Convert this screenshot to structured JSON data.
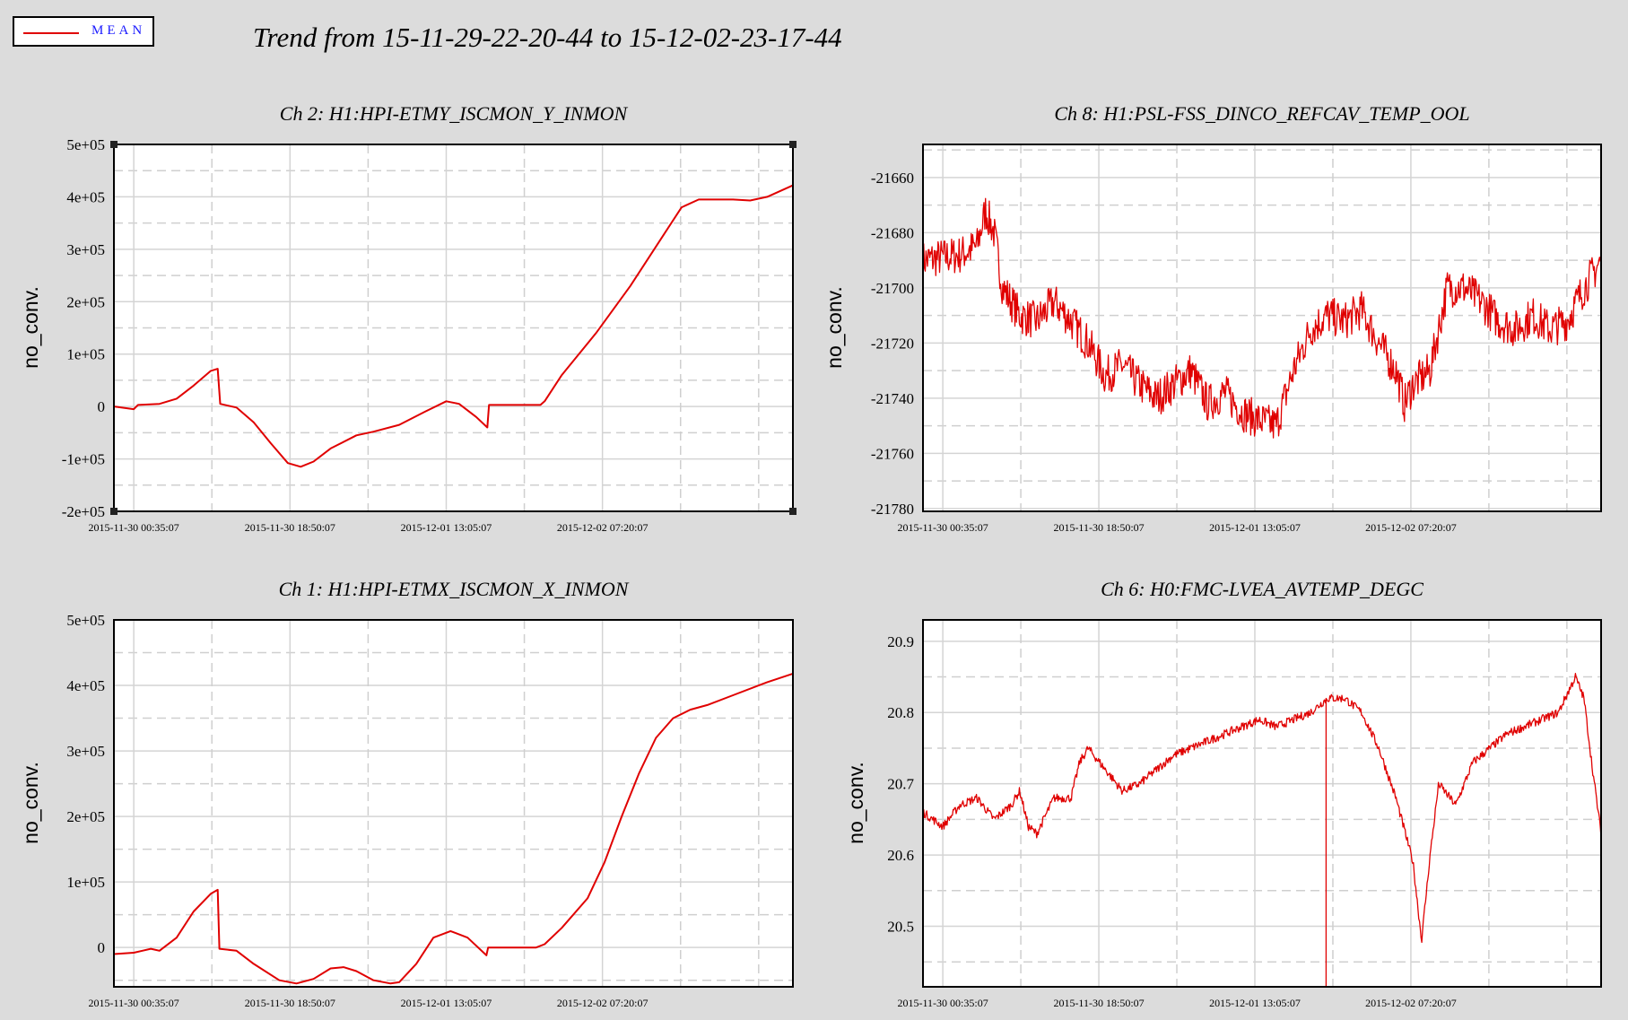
{
  "legend": {
    "label": "MEAN",
    "color": "#e00000"
  },
  "title": "Trend from 15-11-29-22-20-44 to 15-12-02-23-17-44",
  "chart_data": [
    {
      "type": "line",
      "title": "Ch 2: H1:HPI-ETMY_ISCMON_Y_INMON",
      "ylabel": "no_conv.",
      "xlabel": "",
      "series": [
        {
          "name": "MEAN",
          "color": "#e00000"
        }
      ],
      "x_ticks": [
        "2015-11-30 00:35:07",
        "2015-11-30 18:50:07",
        "2015-12-01 13:05:07",
        "2015-12-02 07:20:07"
      ],
      "y_ticks": [
        "-2e+05",
        "-1e+05",
        "0",
        "1e+05",
        "2e+05",
        "3e+05",
        "4e+05",
        "5e+05"
      ],
      "y_tick_values": [
        -200000,
        -100000,
        0,
        100000,
        200000,
        300000,
        400000,
        500000
      ],
      "xlim_hours": [
        -2.32,
        77.0
      ],
      "ylim": [
        -200000,
        500000
      ],
      "grid": true,
      "points": [
        [
          -2.32,
          0
        ],
        [
          0,
          -5000
        ],
        [
          0.5,
          3000
        ],
        [
          3,
          5000
        ],
        [
          5,
          15000
        ],
        [
          7,
          40000
        ],
        [
          9,
          68000
        ],
        [
          9.8,
          72000
        ],
        [
          10.1,
          5000
        ],
        [
          12,
          -2000
        ],
        [
          14,
          -30000
        ],
        [
          16,
          -70000
        ],
        [
          18,
          -108000
        ],
        [
          19.5,
          -115000
        ],
        [
          21,
          -105000
        ],
        [
          23,
          -80000
        ],
        [
          26,
          -55000
        ],
        [
          28,
          -48000
        ],
        [
          31,
          -35000
        ],
        [
          34,
          -10000
        ],
        [
          36.5,
          10000
        ],
        [
          38,
          5000
        ],
        [
          40,
          -20000
        ],
        [
          41.3,
          -40000
        ],
        [
          41.5,
          3000
        ],
        [
          45,
          3000
        ],
        [
          47.5,
          3000
        ],
        [
          48,
          10000
        ],
        [
          50,
          60000
        ],
        [
          54,
          140000
        ],
        [
          58,
          230000
        ],
        [
          62,
          330000
        ],
        [
          64,
          380000
        ],
        [
          66,
          395000
        ],
        [
          70,
          395000
        ],
        [
          72,
          393000
        ],
        [
          74,
          400000
        ],
        [
          77,
          422000
        ]
      ]
    },
    {
      "type": "line",
      "title": "Ch 8: H1:PSL-FSS_DINCO_REFCAV_TEMP_OOL",
      "ylabel": "no_conv.",
      "xlabel": "",
      "series": [
        {
          "name": "MEAN",
          "color": "#e00000"
        }
      ],
      "x_ticks": [
        "2015-11-30 00:35:07",
        "2015-11-30 18:50:07",
        "2015-12-01 13:05:07",
        "2015-12-02 07:20:07"
      ],
      "y_ticks": [
        "-21780",
        "-21760",
        "-21740",
        "-21720",
        "-21700",
        "-21680",
        "-21660"
      ],
      "y_tick_values": [
        -21780,
        -21760,
        -21740,
        -21720,
        -21700,
        -21680,
        -21660
      ],
      "xlim_hours": [
        -2.32,
        77.0
      ],
      "ylim": [
        -21781,
        -21648
      ],
      "grid": true,
      "noise": 7,
      "points": [
        [
          -2.32,
          -21690
        ],
        [
          2,
          -21688
        ],
        [
          4,
          -21685
        ],
        [
          5,
          -21672
        ],
        [
          6,
          -21680
        ],
        [
          7,
          -21700
        ],
        [
          9,
          -21710
        ],
        [
          11,
          -21712
        ],
        [
          13,
          -21705
        ],
        [
          15,
          -21712
        ],
        [
          17,
          -21720
        ],
        [
          19,
          -21732
        ],
        [
          21,
          -21728
        ],
        [
          23,
          -21735
        ],
        [
          25,
          -21740
        ],
        [
          27,
          -21735
        ],
        [
          29,
          -21730
        ],
        [
          31,
          -21742
        ],
        [
          33,
          -21738
        ],
        [
          35,
          -21745
        ],
        [
          37,
          -21748
        ],
        [
          39,
          -21750
        ],
        [
          41,
          -21730
        ],
        [
          43,
          -21715
        ],
        [
          45,
          -21710
        ],
        [
          47,
          -21712
        ],
        [
          49,
          -21708
        ],
        [
          51,
          -21720
        ],
        [
          53,
          -21730
        ],
        [
          54,
          -21742
        ],
        [
          55,
          -21735
        ],
        [
          57,
          -21730
        ],
        [
          59,
          -21700
        ],
        [
          61,
          -21700
        ],
        [
          63,
          -21705
        ],
        [
          65,
          -21712
        ],
        [
          67,
          -21715
        ],
        [
          69,
          -21710
        ],
        [
          71,
          -21715
        ],
        [
          73,
          -21712
        ],
        [
          75,
          -21700
        ],
        [
          77,
          -21690
        ]
      ]
    },
    {
      "type": "line",
      "title": "Ch 1: H1:HPI-ETMX_ISCMON_X_INMON",
      "ylabel": "no_conv.",
      "xlabel": "",
      "series": [
        {
          "name": "MEAN",
          "color": "#e00000"
        }
      ],
      "x_ticks": [
        "2015-11-30 00:35:07",
        "2015-11-30 18:50:07",
        "2015-12-01 13:05:07",
        "2015-12-02 07:20:07"
      ],
      "y_ticks": [
        "0",
        "1e+05",
        "2e+05",
        "3e+05",
        "4e+05",
        "5e+05"
      ],
      "y_tick_values": [
        0,
        100000,
        200000,
        300000,
        400000,
        500000
      ],
      "xlim_hours": [
        -2.32,
        77.0
      ],
      "ylim": [
        -60000,
        500000
      ],
      "grid": true,
      "points": [
        [
          -2.32,
          -10000
        ],
        [
          0,
          -8000
        ],
        [
          1,
          -5000
        ],
        [
          2,
          -2000
        ],
        [
          3,
          -5000
        ],
        [
          5,
          15000
        ],
        [
          7,
          55000
        ],
        [
          9,
          82000
        ],
        [
          9.8,
          88000
        ],
        [
          10,
          -2000
        ],
        [
          12,
          -5000
        ],
        [
          14,
          -25000
        ],
        [
          17,
          -50000
        ],
        [
          19,
          -55000
        ],
        [
          21,
          -48000
        ],
        [
          23,
          -32000
        ],
        [
          24.5,
          -30000
        ],
        [
          26,
          -36000
        ],
        [
          28,
          -50000
        ],
        [
          30,
          -55000
        ],
        [
          31,
          -53000
        ],
        [
          33,
          -25000
        ],
        [
          35,
          15000
        ],
        [
          37,
          25000
        ],
        [
          39,
          15000
        ],
        [
          41.2,
          -12000
        ],
        [
          41.4,
          0
        ],
        [
          45,
          0
        ],
        [
          47,
          0
        ],
        [
          48,
          5000
        ],
        [
          50,
          30000
        ],
        [
          53,
          75000
        ],
        [
          55,
          130000
        ],
        [
          57,
          200000
        ],
        [
          59,
          265000
        ],
        [
          61,
          320000
        ],
        [
          63,
          350000
        ],
        [
          65,
          363000
        ],
        [
          67,
          370000
        ],
        [
          70,
          385000
        ],
        [
          74,
          405000
        ],
        [
          77,
          418000
        ]
      ]
    },
    {
      "type": "line",
      "title": "Ch 6: H0:FMC-LVEA_AVTEMP_DEGC",
      "ylabel": "no_conv.",
      "xlabel": "",
      "series": [
        {
          "name": "MEAN",
          "color": "#e00000"
        }
      ],
      "x_ticks": [
        "2015-11-30 00:35:07",
        "2015-11-30 18:50:07",
        "2015-12-01 13:05:07",
        "2015-12-02 07:20:07"
      ],
      "y_ticks": [
        "20.5",
        "20.6",
        "20.7",
        "20.8",
        "20.9"
      ],
      "y_tick_values": [
        20.5,
        20.6,
        20.7,
        20.8,
        20.9
      ],
      "xlim_hours": [
        -2.32,
        77.0
      ],
      "ylim": [
        20.415,
        20.93
      ],
      "grid": true,
      "noise": 0.006,
      "spike": {
        "x": 44.8,
        "y": 20.415
      },
      "points": [
        [
          -2.32,
          20.66
        ],
        [
          0,
          20.64
        ],
        [
          2,
          20.67
        ],
        [
          4,
          20.68
        ],
        [
          6,
          20.65
        ],
        [
          8,
          20.67
        ],
        [
          9,
          20.69
        ],
        [
          10,
          20.64
        ],
        [
          11,
          20.63
        ],
        [
          13,
          20.68
        ],
        [
          15,
          20.68
        ],
        [
          16,
          20.73
        ],
        [
          17,
          20.75
        ],
        [
          19,
          20.72
        ],
        [
          21,
          20.69
        ],
        [
          23,
          20.7
        ],
        [
          25,
          20.72
        ],
        [
          27,
          20.74
        ],
        [
          29,
          20.75
        ],
        [
          31,
          20.76
        ],
        [
          33,
          20.77
        ],
        [
          35,
          20.78
        ],
        [
          37,
          20.79
        ],
        [
          39,
          20.78
        ],
        [
          41,
          20.79
        ],
        [
          43,
          20.8
        ],
        [
          45,
          20.82
        ],
        [
          47,
          20.82
        ],
        [
          49,
          20.8
        ],
        [
          51,
          20.75
        ],
        [
          53,
          20.68
        ],
        [
          55,
          20.59
        ],
        [
          56,
          20.48
        ],
        [
          57,
          20.6
        ],
        [
          58,
          20.7
        ],
        [
          60,
          20.67
        ],
        [
          62,
          20.73
        ],
        [
          64,
          20.75
        ],
        [
          66,
          20.77
        ],
        [
          68,
          20.78
        ],
        [
          70,
          20.79
        ],
        [
          72,
          20.8
        ],
        [
          74,
          20.85
        ],
        [
          75,
          20.82
        ],
        [
          76,
          20.72
        ],
        [
          77,
          20.63
        ]
      ]
    }
  ]
}
